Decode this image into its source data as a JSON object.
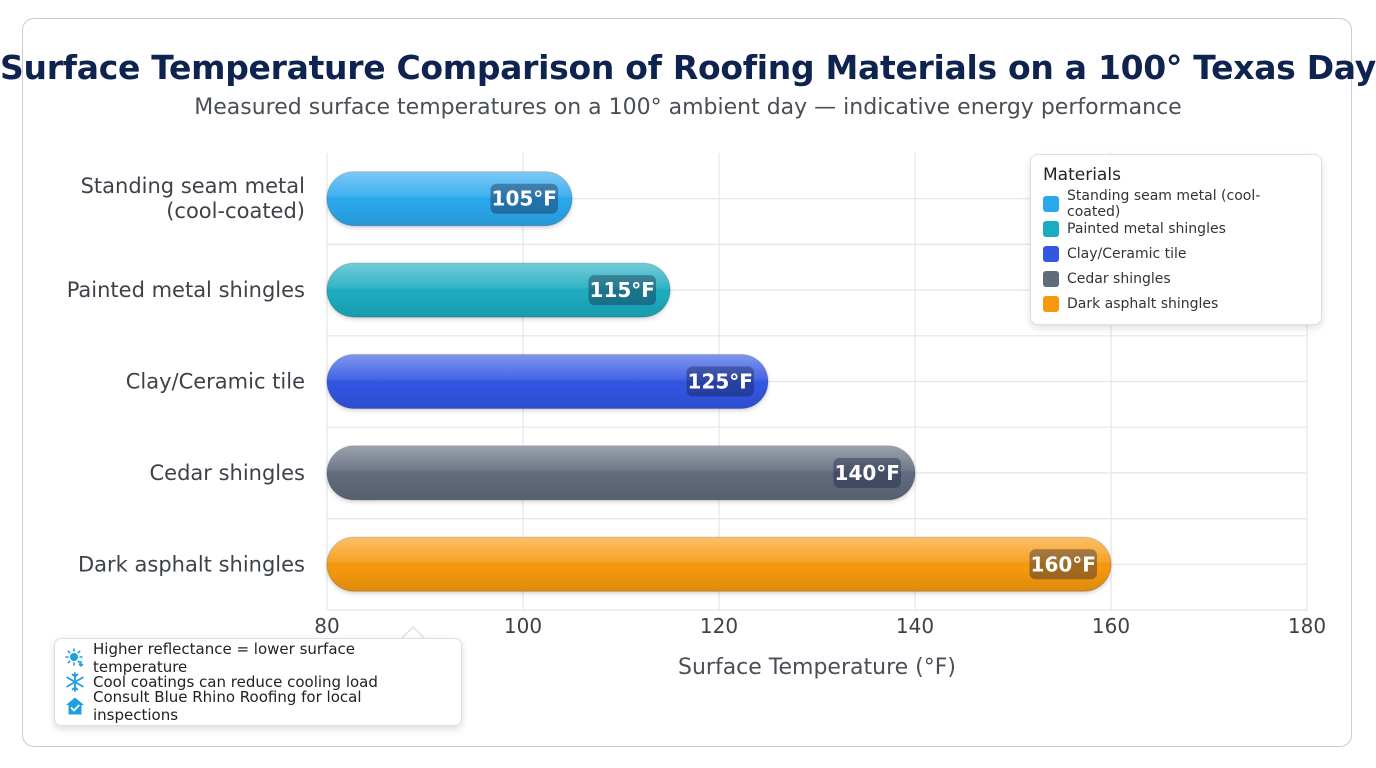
{
  "chart_data": {
    "type": "bar",
    "orientation": "horizontal",
    "title": "Surface Temperature Comparison of Roofing Materials on a 100° Texas Day",
    "subtitle": "Measured surface temperatures on a 100° ambient day — indicative energy performance",
    "xlabel": "Surface Temperature (°F)",
    "ylabel": "",
    "xlim": [
      80,
      180
    ],
    "xticks": [
      "80",
      "100",
      "120",
      "140",
      "160",
      "180"
    ],
    "grid": true,
    "categories": [
      "Standing seam metal (cool-coated)",
      "Painted metal shingles",
      "Clay/Ceramic tile",
      "Cedar shingles",
      "Dark asphalt shingles"
    ],
    "category_display": [
      [
        "Standing seam metal",
        "(cool-coated)"
      ],
      [
        "Painted metal shingles"
      ],
      [
        "Clay/Ceramic tile"
      ],
      [
        "Cedar shingles"
      ],
      [
        "Dark asphalt shingles"
      ]
    ],
    "values": [
      105,
      115,
      125,
      140,
      160
    ],
    "data_labels": [
      "105°F",
      "115°F",
      "125°F",
      "140°F",
      "160°F"
    ],
    "colors": [
      "#2aa8ee",
      "#1aacbf",
      "#3157e3",
      "#606b7b",
      "#f7990f"
    ],
    "legend": {
      "title": "Materials",
      "placement": "top-right",
      "items": [
        "Standing seam metal (cool-coated)",
        "Painted metal shingles",
        "Clay/Ceramic tile",
        "Cedar shingles",
        "Dark asphalt shingles"
      ]
    }
  },
  "notes": {
    "items": [
      {
        "icon": "sun-icon",
        "text": "Higher reflectance = lower surface temperature"
      },
      {
        "icon": "snowflake-icon",
        "text": "Cool coatings can reduce cooling load"
      },
      {
        "icon": "house-check-icon",
        "text": "Consult Blue Rhino Roofing for local inspections"
      }
    ],
    "icon_color": "#1e9fe0"
  }
}
